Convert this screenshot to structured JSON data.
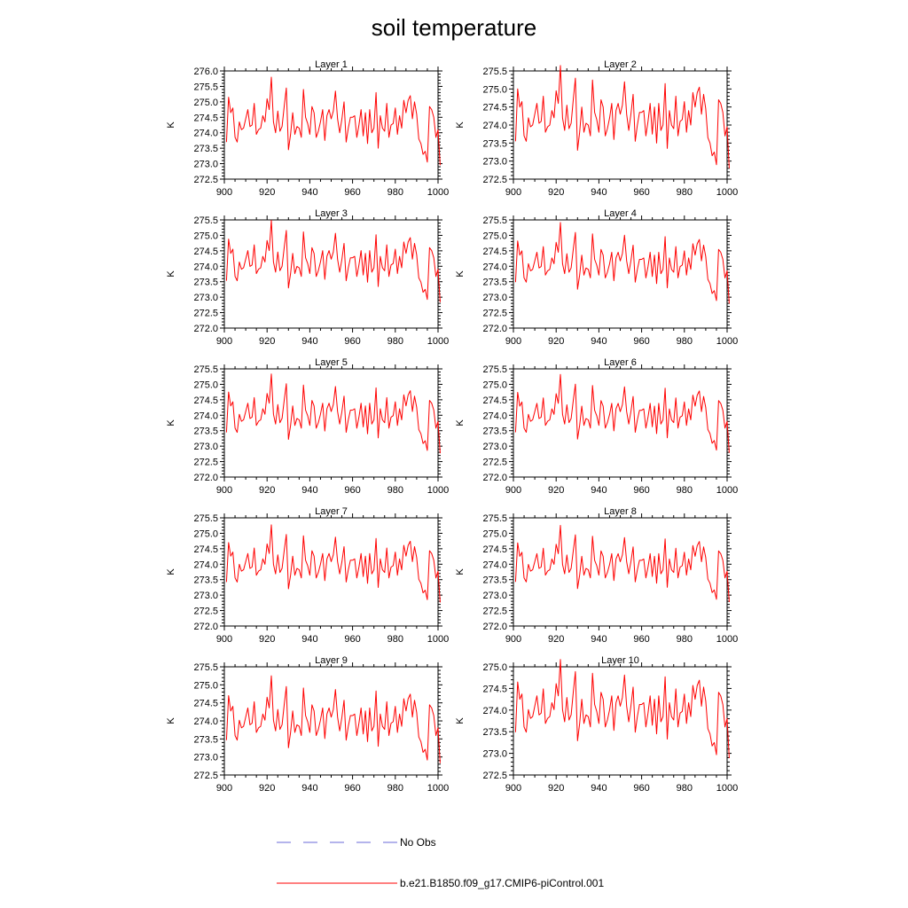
{
  "figure": {
    "title": "soil temperature",
    "legend": [
      {
        "label": "No Obs",
        "color": "#6a6ad8",
        "style": "dashed"
      },
      {
        "label": "b.e21.B1850.f09_g17.CMIP6-piControl.001",
        "color": "#ff0000",
        "style": "solid"
      }
    ]
  },
  "chart_data": [
    {
      "type": "line",
      "title": "Layer 1",
      "xlabel": "",
      "ylabel": "K",
      "xlim": [
        900,
        1000
      ],
      "ylim": [
        272.5,
        276.0
      ],
      "xticks": [
        900,
        920,
        940,
        960,
        980,
        1000
      ],
      "yticks": [
        272.5,
        273.0,
        273.5,
        274.0,
        274.5,
        275.0,
        275.5,
        276.0
      ],
      "series": [
        {
          "name": "b.e21.B1850.f09_g17.CMIP6-piControl.001",
          "color": "#ff0000"
        }
      ]
    },
    {
      "type": "line",
      "title": "Layer 2",
      "xlabel": "",
      "ylabel": "K",
      "xlim": [
        900,
        1000
      ],
      "ylim": [
        272.5,
        275.5
      ],
      "xticks": [
        900,
        920,
        940,
        960,
        980,
        1000
      ],
      "yticks": [
        272.5,
        273.0,
        273.5,
        274.0,
        274.5,
        275.0,
        275.5
      ],
      "series": [
        {
          "name": "b.e21.B1850.f09_g17.CMIP6-piControl.001",
          "color": "#ff0000"
        }
      ]
    },
    {
      "type": "line",
      "title": "Layer 3",
      "xlabel": "",
      "ylabel": "K",
      "xlim": [
        900,
        1000
      ],
      "ylim": [
        272.0,
        275.5
      ],
      "xticks": [
        900,
        920,
        940,
        960,
        980,
        1000
      ],
      "yticks": [
        272.0,
        272.5,
        273.0,
        273.5,
        274.0,
        274.5,
        275.0,
        275.5
      ],
      "series": [
        {
          "name": "b.e21.B1850.f09_g17.CMIP6-piControl.001",
          "color": "#ff0000"
        }
      ]
    },
    {
      "type": "line",
      "title": "Layer 4",
      "xlabel": "",
      "ylabel": "K",
      "xlim": [
        900,
        1000
      ],
      "ylim": [
        272.0,
        275.5
      ],
      "xticks": [
        900,
        920,
        940,
        960,
        980,
        1000
      ],
      "yticks": [
        272.0,
        272.5,
        273.0,
        273.5,
        274.0,
        274.5,
        275.0,
        275.5
      ],
      "series": [
        {
          "name": "b.e21.B1850.f09_g17.CMIP6-piControl.001",
          "color": "#ff0000"
        }
      ]
    },
    {
      "type": "line",
      "title": "Layer 5",
      "xlabel": "",
      "ylabel": "K",
      "xlim": [
        900,
        1000
      ],
      "ylim": [
        272.0,
        275.5
      ],
      "xticks": [
        900,
        920,
        940,
        960,
        980,
        1000
      ],
      "yticks": [
        272.0,
        272.5,
        273.0,
        273.5,
        274.0,
        274.5,
        275.0,
        275.5
      ],
      "series": [
        {
          "name": "b.e21.B1850.f09_g17.CMIP6-piControl.001",
          "color": "#ff0000"
        }
      ]
    },
    {
      "type": "line",
      "title": "Layer 6",
      "xlabel": "",
      "ylabel": "K",
      "xlim": [
        900,
        1000
      ],
      "ylim": [
        272.0,
        275.5
      ],
      "xticks": [
        900,
        920,
        940,
        960,
        980,
        1000
      ],
      "yticks": [
        272.0,
        272.5,
        273.0,
        273.5,
        274.0,
        274.5,
        275.0,
        275.5
      ],
      "series": [
        {
          "name": "b.e21.B1850.f09_g17.CMIP6-piControl.001",
          "color": "#ff0000"
        }
      ]
    },
    {
      "type": "line",
      "title": "Layer 7",
      "xlabel": "",
      "ylabel": "K",
      "xlim": [
        900,
        1000
      ],
      "ylim": [
        272.0,
        275.5
      ],
      "xticks": [
        900,
        920,
        940,
        960,
        980,
        1000
      ],
      "yticks": [
        272.0,
        272.5,
        273.0,
        273.5,
        274.0,
        274.5,
        275.0,
        275.5
      ],
      "series": [
        {
          "name": "b.e21.B1850.f09_g17.CMIP6-piControl.001",
          "color": "#ff0000"
        }
      ]
    },
    {
      "type": "line",
      "title": "Layer 8",
      "xlabel": "",
      "ylabel": "K",
      "xlim": [
        900,
        1000
      ],
      "ylim": [
        272.0,
        275.5
      ],
      "xticks": [
        900,
        920,
        940,
        960,
        980,
        1000
      ],
      "yticks": [
        272.0,
        272.5,
        273.0,
        273.5,
        274.0,
        274.5,
        275.0,
        275.5
      ],
      "series": [
        {
          "name": "b.e21.B1850.f09_g17.CMIP6-piControl.001",
          "color": "#ff0000"
        }
      ]
    },
    {
      "type": "line",
      "title": "Layer 9",
      "xlabel": "",
      "ylabel": "K",
      "xlim": [
        900,
        1000
      ],
      "ylim": [
        272.5,
        275.5
      ],
      "xticks": [
        900,
        920,
        940,
        960,
        980,
        1000
      ],
      "yticks": [
        272.5,
        273.0,
        273.5,
        274.0,
        274.5,
        275.0,
        275.5
      ],
      "series": [
        {
          "name": "b.e21.B1850.f09_g17.CMIP6-piControl.001",
          "color": "#ff0000"
        }
      ]
    },
    {
      "type": "line",
      "title": "Layer 10",
      "xlabel": "",
      "ylabel": "K",
      "xlim": [
        900,
        1000
      ],
      "ylim": [
        272.5,
        275.0
      ],
      "xticks": [
        900,
        920,
        940,
        960,
        980,
        1000
      ],
      "yticks": [
        272.5,
        273.0,
        273.5,
        274.0,
        274.5,
        275.0
      ],
      "series": [
        {
          "name": "b.e21.B1850.f09_g17.CMIP6-piControl.001",
          "color": "#ff0000"
        }
      ]
    }
  ],
  "series_base": {
    "x_start": 901,
    "x_step": 1,
    "anomaly_values": [
      -0.45,
      1.0,
      0.5,
      0.65,
      -0.3,
      -0.45,
      0.2,
      -0.05,
      0.0,
      0.3,
      0.6,
      0.05,
      0.1,
      0.8,
      -0.2,
      -0.05,
      0.0,
      0.4,
      0.2,
      0.95,
      0.6,
      1.65,
      0.2,
      -0.15,
      0.55,
      -0.1,
      0.05,
      0.7,
      1.3,
      -0.7,
      -0.2,
      0.5,
      -0.2,
      0.05,
      0.0,
      -0.3,
      1.25,
      0.35,
      0.15,
      -0.2,
      0.7,
      0.5,
      -0.3,
      -0.1,
      0.2,
      0.6,
      -0.4,
      0.4,
      0.6,
      0.3,
      0.55,
      1.2,
      0.3,
      -0.15,
      0.3,
      0.85,
      -0.45,
      0.0,
      0.35,
      0.35,
      0.4,
      -0.3,
      0.1,
      0.6,
      -0.25,
      0.5,
      -0.5,
      0.6,
      -0.15,
      0.0,
      1.15,
      -0.65,
      0.4,
      0.0,
      -0.1,
      0.8,
      -0.3,
      0.1,
      0.15,
      0.65,
      -0.2,
      0.4,
      0.0,
      0.9,
      0.5,
      0.9,
      1.05,
      0.3,
      0.85,
      0.45,
      -0.35,
      -0.5,
      -0.85,
      -0.75,
      -1.1,
      0.7,
      0.6,
      0.35,
      -0.3,
      -0.05,
      -1.2
    ]
  },
  "layer_params": [
    {
      "mean": 274.15,
      "scale": 1.0
    },
    {
      "mean": 274.0,
      "scale": 1.0
    },
    {
      "mean": 273.95,
      "scale": 0.93
    },
    {
      "mean": 273.9,
      "scale": 0.92
    },
    {
      "mean": 273.85,
      "scale": 0.9
    },
    {
      "mean": 273.85,
      "scale": 0.89
    },
    {
      "mean": 273.82,
      "scale": 0.88
    },
    {
      "mean": 273.82,
      "scale": 0.87
    },
    {
      "mean": 273.85,
      "scale": 0.85
    },
    {
      "mean": 273.85,
      "scale": 0.8
    }
  ]
}
